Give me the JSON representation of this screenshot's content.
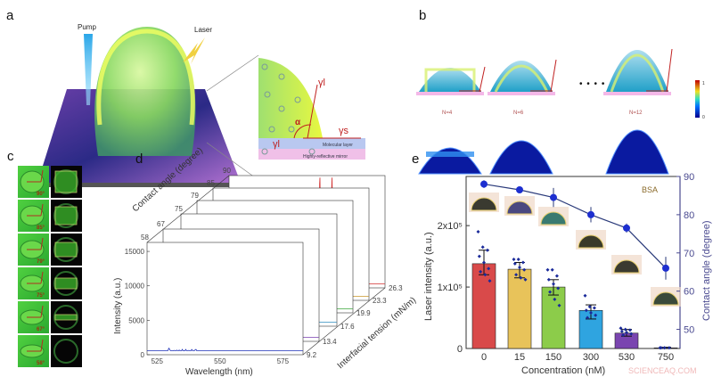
{
  "panels": {
    "a": {
      "label": "a",
      "pump": "Pump",
      "laser": "Laser",
      "gamma_l_top": "γl",
      "alpha": "α",
      "gamma_s": "γs",
      "gamma_l_bottom": "γl",
      "molecular_layer": "Molecular layer",
      "mirror": "Highly-reflective mirror"
    },
    "b": {
      "label": "b",
      "modes": [
        "N=4",
        "N=6",
        "N=12"
      ],
      "ellipsis": "• • • •",
      "colorbar": {
        "max": "1",
        "min": "0"
      }
    },
    "c": {
      "label": "c",
      "angles": [
        "90°",
        "85°",
        "79°",
        "75°",
        "67°",
        "58°"
      ]
    },
    "d": {
      "label": "d"
    },
    "e": {
      "label": "e",
      "annotation": "BSA"
    }
  },
  "watermark": "SCIENCEAQ.COM",
  "colors": {
    "red": "#d23a3a",
    "gold": "#d9a93a",
    "green": "#5bbd3a",
    "blue": "#2f9fd8",
    "purple": "#7a3fb0",
    "navy": "#1d2fb8"
  },
  "chart_data": [
    {
      "panel": "d",
      "type": "line",
      "xlabel": "Wavelength (nm)",
      "ylabel": "Intensity (a.u.)",
      "zlabel_contact": "Contact angle (degree)",
      "zlabel_tension": "Interfacial tension (mN/m)",
      "x_ticks": [
        "525",
        "550",
        "575"
      ],
      "y_ticks": [
        "0",
        "5000",
        "10000",
        "15000"
      ],
      "xlim": [
        521,
        583
      ],
      "ylim": [
        0,
        15000
      ],
      "series": [
        {
          "contact_angle": "58",
          "tension": "9.2",
          "color": "#1d2fb8",
          "peak_nm": 535,
          "peak_intensity": 200,
          "width_nm": 6
        },
        {
          "contact_angle": "67",
          "tension": "13.4",
          "color": "#7a3fb0",
          "peak_nm": 528,
          "peak_intensity": 1300,
          "width_nm": 2
        },
        {
          "contact_angle": "75",
          "tension": "17.6",
          "color": "#2f8fc0",
          "peak_nm": 535,
          "peak_intensity": 1300,
          "width_nm": 3
        },
        {
          "contact_angle": "79",
          "tension": "19.9",
          "color": "#3aa63a",
          "peak_nm": 553,
          "peak_intensity": 3200,
          "width_nm": 5
        },
        {
          "contact_angle": "85",
          "tension": "23.3",
          "color": "#c9962a",
          "peak_nm": 556,
          "peak_intensity": 6500,
          "width_nm": 6
        },
        {
          "contact_angle": "90",
          "tension": "26.3",
          "color": "#d23030",
          "peak_nm": 562,
          "peak_intensity": 12800,
          "width_nm": 5
        }
      ]
    },
    {
      "panel": "e",
      "type": "bar",
      "xlabel": "Concentration (nM)",
      "ylabel": "Laser intensity (a.u.)",
      "y2label": "Contact angle (degree)",
      "categories": [
        "0",
        "15",
        "150",
        "300",
        "530",
        "750"
      ],
      "y_ticks": [
        "0",
        "1x10⁵",
        "2x10⁵"
      ],
      "y_tick_values": [
        0,
        100000,
        200000
      ],
      "y2_ticks": [
        "50",
        "60",
        "70",
        "80",
        "90"
      ],
      "ylim": [
        0,
        280000
      ],
      "y2lim": [
        45,
        90
      ],
      "series": [
        {
          "kind": "bar",
          "values": [
            138000,
            129000,
            100000,
            62000,
            25000,
            1000
          ],
          "err_low": [
            120000,
            115000,
            87000,
            48000,
            20000,
            0
          ],
          "err_high": [
            160000,
            140000,
            112000,
            71000,
            31000,
            2000
          ],
          "points": [
            [
              190000,
              165000,
              160000,
              150000,
              140000,
              130000,
              125000,
              120000,
              110000
            ],
            [
              145000,
              145000,
              140000,
              138000,
              132000,
              128000,
              120000,
              115000,
              112000
            ],
            [
              128000,
              128000,
              118000,
              112000,
              105000,
              98000,
              92000,
              80000,
              70000
            ],
            [
              86000,
              68000,
              66000,
              62000,
              58000,
              54000,
              50000
            ],
            [
              33000,
              31000,
              30000,
              28000,
              26000,
              24000,
              22000
            ],
            [
              1000,
              1000,
              1000,
              1000
            ]
          ],
          "colors": [
            "#d94a4a",
            "#e8c35a",
            "#8ccc4a",
            "#2fa4e0",
            "#7a45b0",
            "#3a2060"
          ]
        },
        {
          "kind": "line",
          "axis": "right",
          "values": [
            88,
            86.5,
            84.5,
            80,
            76.5,
            66
          ],
          "errors": [
            1,
            0.8,
            2.5,
            2,
            1.2,
            3
          ],
          "color": "#1d2fd0"
        }
      ]
    }
  ]
}
